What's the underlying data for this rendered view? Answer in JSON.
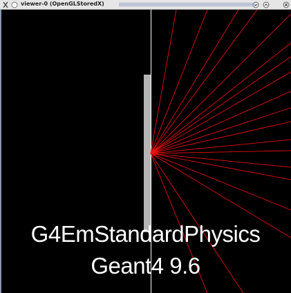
{
  "window": {
    "title": "viewer-0 (OpenGLStoredX)"
  },
  "overlay": {
    "lines": [
      "G4EmStandardPhysics",
      "Geant4 9.6"
    ]
  }
}
